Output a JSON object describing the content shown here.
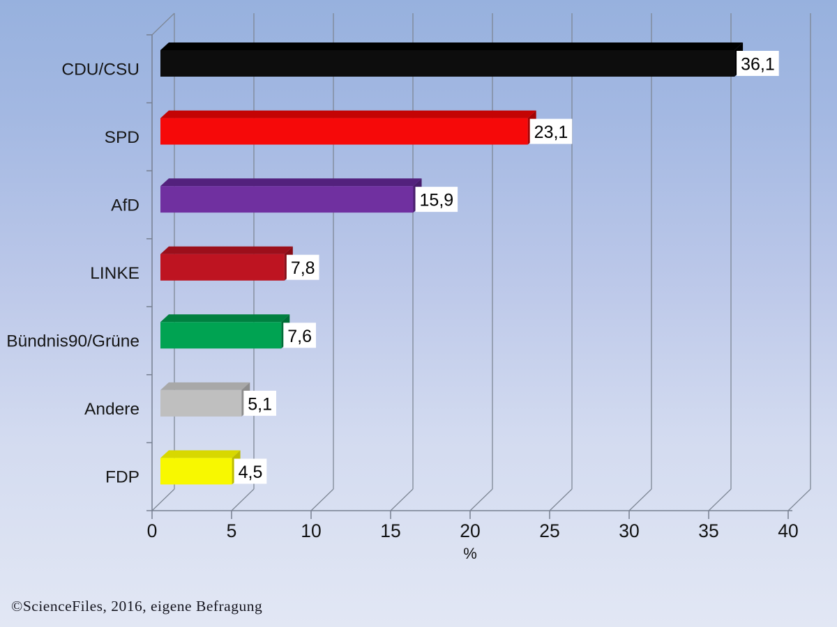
{
  "slide": {
    "credit": "©ScienceFiles, 2016, eigene Befragung",
    "background_top_color": "#97b1de",
    "background_bottom_color": "#e2e7f4"
  },
  "chart_data": {
    "type": "bar",
    "orientation": "horizontal",
    "style": "3d",
    "title": "",
    "xlabel": "%",
    "ylabel": "",
    "xlim": [
      0,
      40
    ],
    "x_ticks": [
      0,
      5,
      10,
      15,
      20,
      25,
      30,
      35,
      40
    ],
    "grid": true,
    "legend": "none",
    "categories": [
      "CDU/CSU",
      "SPD",
      "AfD",
      "LINKE",
      "Bündnis90/Grüne",
      "Andere",
      "FDP"
    ],
    "values": [
      36.1,
      23.1,
      15.9,
      7.8,
      7.6,
      5.1,
      4.5
    ],
    "value_labels": [
      "36,1",
      "23,1",
      "15,9",
      "7,8",
      "7,6",
      "5,1",
      "4,5"
    ],
    "bar_front_colors": [
      "#0d0d0d",
      "#f60909",
      "#7030a0",
      "#be1421",
      "#00a352",
      "#bfbfbf",
      "#f8f800"
    ],
    "bar_top_colors": [
      "#000000",
      "#c40404",
      "#53217d",
      "#9c0f1b",
      "#008040",
      "#a8a8a8",
      "#d8d800"
    ],
    "bar_side_colors": [
      "#000000",
      "#a30303",
      "#471c6b",
      "#870d17",
      "#006e37",
      "#8c8c8c",
      "#bcbc00"
    ],
    "value_label_bg": "#ffffff",
    "value_label_text_color": "#000000",
    "axis_line_color": "#767f90",
    "grid_line_color": "#7e8795",
    "tick_text_color": "#121212",
    "category_text_color": "#161616"
  }
}
